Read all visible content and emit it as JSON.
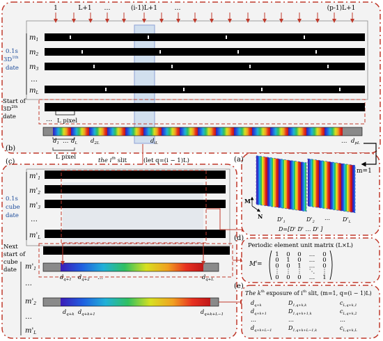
{
  "panels": {
    "b": "(b)",
    "c": "(c)",
    "a": "(a)",
    "d": "(d)",
    "e": "(e)"
  },
  "top_labels": {
    "l1": "1",
    "l2": "L+1",
    "l3": "…",
    "l4": "(i-1)L+1",
    "l5": "…",
    "l6": "(p-1)L+1"
  },
  "panel_b": {
    "rows": [
      "m",
      "m",
      "m",
      "m"
    ],
    "row_subs": [
      "1",
      "2",
      "3",
      "L"
    ],
    "ellipsis": "…",
    "side_label_1": "0.1s",
    "side_label_2": "3D",
    "side_label_2_sup": "1th",
    "side_label_3": "date",
    "start_1": "Start of",
    "start_2": "3D",
    "start_2_sup": "2th",
    "start_3": "date",
    "pixel_label": "L pixel",
    "d_labels": [
      "d",
      "d",
      "d",
      "d",
      "d"
    ],
    "d_subs": [
      "1",
      "L",
      "2L",
      "iL",
      "pL"
    ],
    "d_dots": "…",
    "d_dots_end": "…"
  },
  "middle": {
    "pixel_label": "L pixel",
    "slit_pre": "the i",
    "slit_sup": "th",
    "slit_post": " slit",
    "let_text": "(let q=(i − 1)L)"
  },
  "panel_c": {
    "rows": [
      "m'",
      "m'",
      "m'",
      "m'"
    ],
    "row_subs": [
      "1",
      "2",
      "3",
      "L"
    ],
    "side_label_1": "0.1s",
    "side_label_2": "cube",
    "side_label_3": "date",
    "next_1": "Next",
    "next_2": "start of",
    "next_3": "cube",
    "next_4": "date",
    "lower_rows": [
      "m'",
      "m'",
      "m'"
    ],
    "lower_subs": [
      "1",
      "2",
      "L"
    ],
    "d_row1": [
      "d",
      "d",
      "…",
      "d"
    ],
    "d_row1_subs": [
      "q+1",
      "q+2",
      "",
      "q+L"
    ],
    "d_row2": [
      "d",
      "d",
      "d"
    ],
    "d_row2_subs": [
      "q+k",
      "q+k+1",
      "q+k+L−1"
    ]
  },
  "panel_a": {
    "m_eq": "m=1",
    "axis_m": "M",
    "axis_n": "N",
    "d_labels": [
      "D'",
      "D'",
      "…",
      "D'"
    ],
    "d_subs": [
      "1",
      "2",
      "",
      "L"
    ],
    "eq": "D=[D'  D'  …  D' ]",
    "eq_subs": [
      "1",
      "2",
      "L"
    ]
  },
  "panel_d": {
    "title": "Periodic element unit matrix (L×L)",
    "lhs": "M",
    "lhs_sup": "i",
    "eq": "=",
    "rows": [
      [
        "1",
        "0",
        "0",
        "…",
        "0"
      ],
      [
        "0",
        "1",
        "0",
        "…",
        "0"
      ],
      [
        "0",
        "0",
        "1",
        "…",
        "0"
      ],
      [
        "⋮",
        "⋮",
        "⋮",
        "⋱",
        "⋮"
      ],
      [
        "0",
        "0",
        "0",
        "…",
        "1"
      ]
    ]
  },
  "panel_e": {
    "title_pre": "The k",
    "title_sup": "th",
    "title_mid": " exposure of i",
    "title_sup2": "th",
    "title_post": " slit, (m=1, q=(i − 1)L)",
    "rows": [
      {
        "a": "d",
        "as": "q+k",
        "b": "D",
        "bs": "1,q+k,k",
        "c": "c",
        "cs": "L,q+k,1"
      },
      {
        "a": "d",
        "as": "q+k+1",
        "b": "D",
        "bs": "1,q+k+1,k",
        "c": "c",
        "cs": "L,q+k,2"
      },
      {
        "a": "…",
        "as": "",
        "b": "…",
        "bs": "",
        "c": "…",
        "cs": ""
      },
      {
        "a": "d",
        "as": "q+k+L−1",
        "b": "D",
        "bs": "1,q+k+L−1,k",
        "c": "c",
        "cs": "L,q+k,L"
      }
    ]
  }
}
